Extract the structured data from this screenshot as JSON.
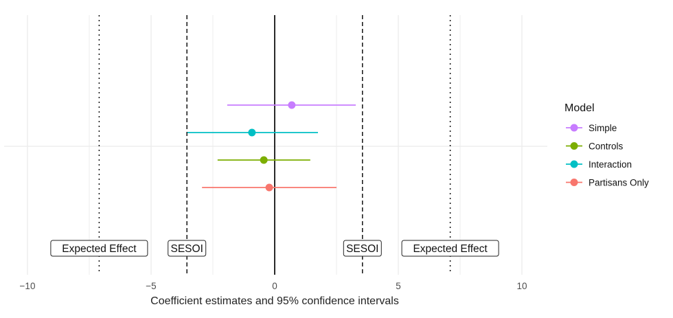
{
  "chart_data": {
    "type": "scatter",
    "subtype": "coefficient-plot",
    "title": "",
    "xlabel": "Coefficient estimates and 95% confidence intervals",
    "ylabel": "",
    "xlim": [
      -11,
      11
    ],
    "x_ticks": [
      -10,
      -5,
      0,
      5,
      10
    ],
    "x_tick_labels": [
      "−10",
      "−5",
      "0",
      "5",
      "10"
    ],
    "grid": true,
    "legend": {
      "title": "Model",
      "placement": "right",
      "entries": [
        {
          "name": "Simple",
          "color": "#C77CFF"
        },
        {
          "name": "Controls",
          "color": "#7CAE00"
        },
        {
          "name": "Interaction",
          "color": "#00BFC4"
        },
        {
          "name": "Partisans Only",
          "color": "#F8766D"
        }
      ]
    },
    "series": [
      {
        "name": "Simple",
        "color": "#C77CFF",
        "estimate": 0.69,
        "ci_low": -1.92,
        "ci_high": 3.28,
        "row": 1
      },
      {
        "name": "Interaction",
        "color": "#00BFC4",
        "estimate": -0.92,
        "ci_low": -3.53,
        "ci_high": 1.75,
        "row": 2
      },
      {
        "name": "Controls",
        "color": "#7CAE00",
        "estimate": -0.44,
        "ci_low": -2.31,
        "ci_high": 1.44,
        "row": 3
      },
      {
        "name": "Partisans Only",
        "color": "#F8766D",
        "estimate": -0.22,
        "ci_low": -2.94,
        "ci_high": 2.5,
        "row": 4
      }
    ],
    "reference_lines": [
      {
        "x": 0,
        "style": "solid",
        "label": ""
      },
      {
        "x": -3.55,
        "style": "dashed",
        "label": "SESOI"
      },
      {
        "x": 3.55,
        "style": "dashed",
        "label": "SESOI"
      },
      {
        "x": -7.1,
        "style": "dotted",
        "label": "Expected Effect"
      },
      {
        "x": 7.1,
        "style": "dotted",
        "label": "Expected Effect"
      }
    ]
  }
}
